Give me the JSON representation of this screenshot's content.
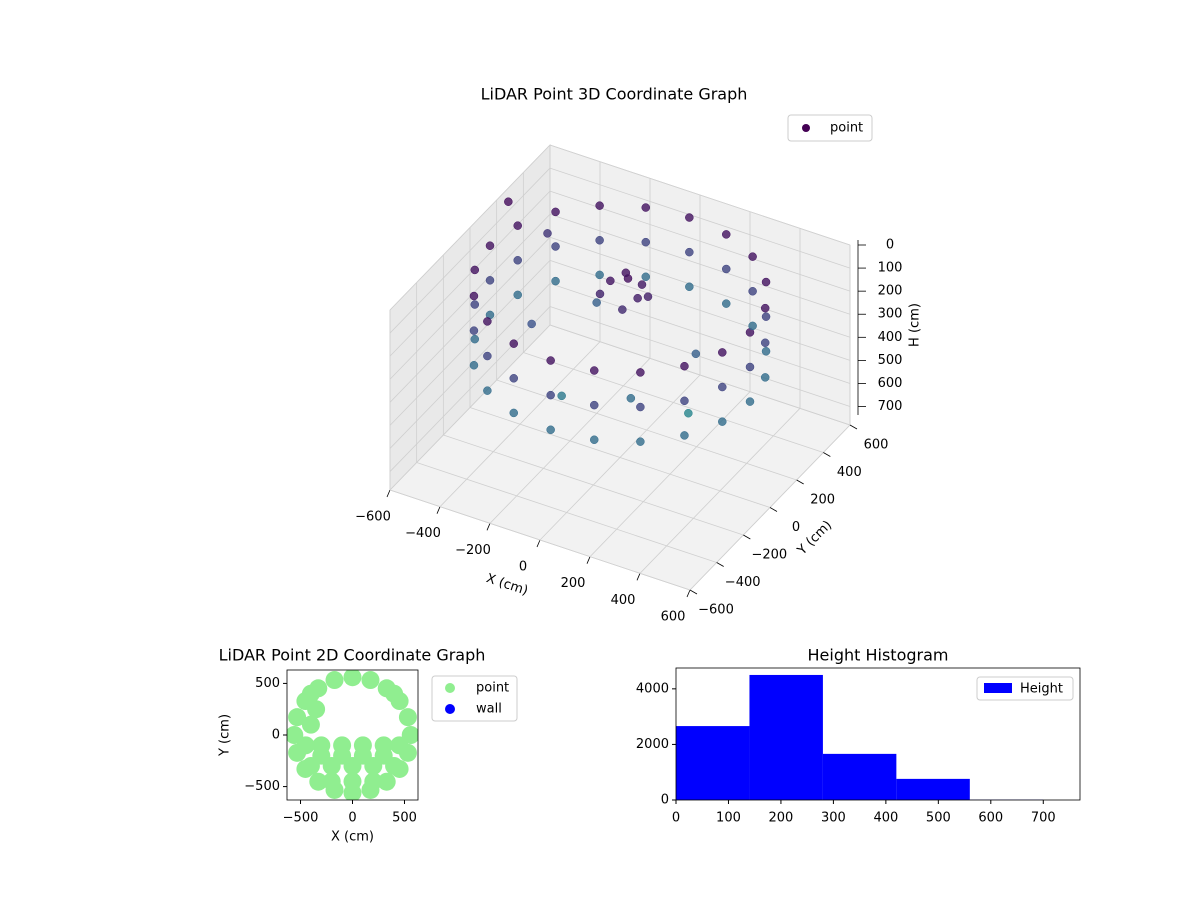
{
  "chart_data": [
    {
      "type": "scatter3d",
      "title": "LiDAR Point 3D Coordinate Graph",
      "xlabel": "X (cm)",
      "ylabel": "Y (cm)",
      "zlabel": "H (cm)",
      "xlim": [
        -600,
        600
      ],
      "ylim": [
        -600,
        600
      ],
      "zlim": [
        0,
        780
      ],
      "z_inverted": true,
      "xticks": [
        {
          "value": -600,
          "label": "−600"
        },
        {
          "value": -400,
          "label": "−400"
        },
        {
          "value": -200,
          "label": "−200"
        },
        0,
        200,
        400,
        600
      ],
      "yticks": [
        {
          "value": -600,
          "label": "−600"
        },
        {
          "value": -400,
          "label": "−400"
        },
        {
          "value": -200,
          "label": "−200"
        },
        0,
        200,
        400,
        600
      ],
      "zticks": [
        0,
        100,
        200,
        300,
        400,
        500,
        600,
        700
      ],
      "grid": true,
      "legend": "upper right",
      "cmap": [
        "#440154",
        "#3b528b",
        "#21918c"
      ],
      "clim": [
        0,
        500
      ],
      "series": [
        {
          "name": "point",
          "x": [
            520,
            520,
            520,
            495,
            495,
            495,
            421,
            421,
            421,
            306,
            306,
            306,
            161,
            161,
            161,
            0,
            0,
            0,
            -161,
            -161,
            -161,
            -306,
            -306,
            -306,
            -421,
            -421,
            -421,
            -495,
            -495,
            -495,
            -520,
            -520,
            -520,
            -495,
            -495,
            -495,
            -421,
            -421,
            -421,
            -306,
            -306,
            -306,
            -161,
            -161,
            -161,
            0,
            0,
            0,
            161,
            161,
            161,
            306,
            306,
            306,
            421,
            421,
            421,
            495,
            495,
            495,
            -60,
            0,
            60,
            -30,
            40,
            -80,
            20,
            80,
            -300,
            -200,
            150,
            250,
            -100,
            300,
            -450,
            -580
          ],
          "y": [
            0,
            0,
            0,
            161,
            161,
            161,
            306,
            306,
            306,
            421,
            421,
            421,
            495,
            495,
            495,
            520,
            520,
            520,
            495,
            495,
            495,
            421,
            421,
            421,
            306,
            306,
            306,
            161,
            161,
            161,
            0,
            0,
            0,
            -161,
            -161,
            -161,
            -306,
            -306,
            -306,
            -421,
            -421,
            -421,
            -495,
            -495,
            -495,
            -520,
            -520,
            -520,
            -495,
            -495,
            -495,
            -421,
            -421,
            -421,
            -306,
            -306,
            -306,
            -161,
            -161,
            -161,
            40,
            60,
            20,
            100,
            90,
            0,
            -20,
            60,
            -100,
            200,
            -200,
            100,
            -250,
            -50,
            300,
            250
          ],
          "h": [
            50,
            200,
            350,
            50,
            200,
            350,
            50,
            200,
            350,
            50,
            200,
            350,
            50,
            200,
            350,
            50,
            200,
            350,
            50,
            200,
            350,
            50,
            200,
            350,
            50,
            200,
            350,
            50,
            200,
            350,
            50,
            200,
            350,
            50,
            200,
            350,
            50,
            200,
            350,
            50,
            200,
            350,
            50,
            200,
            350,
            50,
            200,
            350,
            50,
            200,
            350,
            50,
            200,
            350,
            50,
            200,
            350,
            50,
            200,
            350,
            60,
            40,
            80,
            50,
            70,
            100,
            120,
            90,
            250,
            300,
            350,
            300,
            400,
            450,
            150,
            30
          ]
        }
      ]
    },
    {
      "type": "scatter",
      "title": "LiDAR Point 2D Coordinate Graph",
      "xlabel": "X (cm)",
      "ylabel": "Y (cm)",
      "xlim": [
        -630,
        630
      ],
      "ylim": [
        -630,
        630
      ],
      "xticks": [
        {
          "value": -500,
          "label": "−500"
        },
        0,
        500
      ],
      "yticks": [
        {
          "value": -500,
          "label": "−500"
        },
        0,
        500
      ],
      "legend": "outside right",
      "series": [
        {
          "name": "point",
          "color": "#90ee90",
          "x": [
            560,
            533,
            453,
            329,
            173,
            0,
            -173,
            -329,
            -453,
            -533,
            -560,
            -533,
            -453,
            -329,
            -173,
            0,
            173,
            329,
            453,
            533,
            -400,
            -200,
            0,
            200,
            400,
            -300,
            -100,
            100,
            300,
            -400,
            -200,
            0,
            200,
            -100,
            100,
            300,
            -300,
            -450,
            450,
            -400,
            400,
            -350
          ],
          "y": [
            0,
            173,
            329,
            453,
            533,
            560,
            533,
            453,
            329,
            173,
            0,
            -173,
            -329,
            -453,
            -533,
            -560,
            -533,
            -453,
            -329,
            -173,
            -300,
            -300,
            -300,
            -300,
            -300,
            -100,
            -100,
            -100,
            -100,
            100,
            -450,
            -450,
            -450,
            -200,
            -200,
            -200,
            -200,
            -100,
            -100,
            400,
            400,
            250
          ]
        },
        {
          "name": "wall",
          "color": "#0000ff",
          "x": [],
          "y": []
        }
      ]
    },
    {
      "type": "histogram",
      "title": "Height Histogram",
      "bins": [
        0,
        140,
        280,
        420,
        560,
        700
      ],
      "xlim": [
        0,
        770
      ],
      "ylim": [
        0,
        4750
      ],
      "xticks": [
        0,
        100,
        200,
        300,
        400,
        500,
        600,
        700
      ],
      "yticks": [
        0,
        2000,
        4000
      ],
      "legend": "upper right",
      "series": [
        {
          "name": "Height",
          "color": "#0000ff",
          "values": [
            2660,
            4500,
            1660,
            760,
            10
          ]
        }
      ]
    }
  ]
}
